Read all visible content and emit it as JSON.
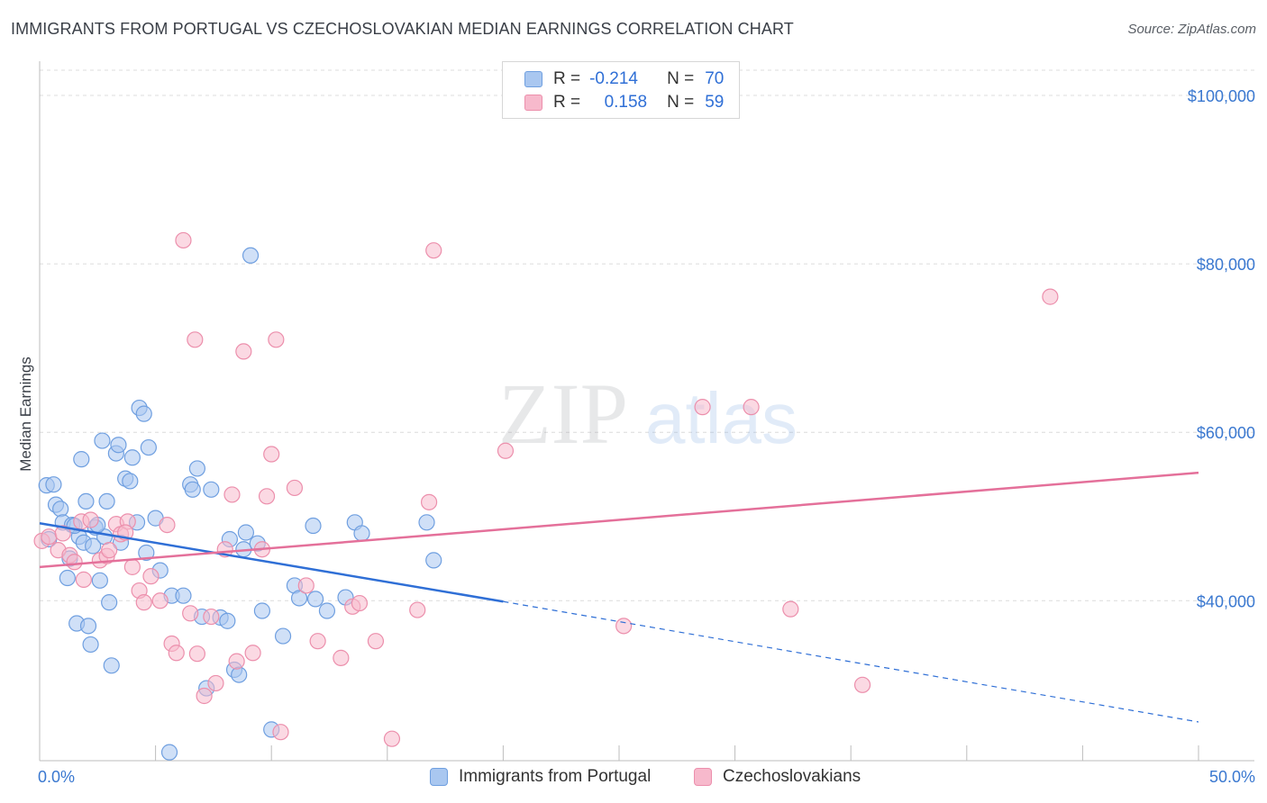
{
  "title": "IMMIGRANTS FROM PORTUGAL VS CZECHOSLOVAKIAN MEDIAN EARNINGS CORRELATION CHART",
  "source": "Source: ZipAtlas.com",
  "watermark": {
    "zip": "ZIP",
    "atlas": "atlas"
  },
  "legend": {
    "rows": [
      {
        "r_label": "R =",
        "r_value": "-0.214",
        "n_label": "N =",
        "n_value": "70",
        "color": "#a9c7f0",
        "stroke": "#6f9fe0"
      },
      {
        "r_label": "R =",
        "r_value": "0.158",
        "n_label": "N =",
        "n_value": "59",
        "color": "#f7b9cc",
        "stroke": "#ec8fac"
      }
    ]
  },
  "bottom_legend": [
    {
      "label": "Immigrants from Portugal",
      "color": "#a9c7f0",
      "stroke": "#6f9fe0"
    },
    {
      "label": "Czechoslovakians",
      "color": "#f7b9cc",
      "stroke": "#ec8fac"
    }
  ],
  "chart_data": {
    "type": "scatter",
    "title": "IMMIGRANTS FROM PORTUGAL VS CZECHOSLOVAKIAN MEDIAN EARNINGS CORRELATION CHART",
    "xlabel": "",
    "ylabel": "Median Earnings",
    "xlim": [
      0,
      50
    ],
    "ylim": [
      21000,
      103000
    ],
    "x_tick_labels": [
      "0.0%",
      "50.0%"
    ],
    "y_ticks": [
      40000,
      60000,
      80000,
      100000
    ],
    "y_tick_labels": [
      "$40,000",
      "$60,000",
      "$80,000",
      "$100,000"
    ],
    "grid": true,
    "legend_position": "top-center",
    "series": [
      {
        "name": "Immigrants from Portugal",
        "color": "#6f9fe0",
        "fill": "#a9c7f0",
        "trend": {
          "x": [
            0,
            20,
            50
          ],
          "y": [
            49200,
            39900,
            25600
          ],
          "solid_until": 20
        },
        "points": [
          [
            0.3,
            53700
          ],
          [
            0.6,
            53800
          ],
          [
            0.7,
            51400
          ],
          [
            0.9,
            50900
          ],
          [
            1.0,
            49300
          ],
          [
            1.2,
            42700
          ],
          [
            1.3,
            45000
          ],
          [
            1.4,
            49000
          ],
          [
            1.6,
            37300
          ],
          [
            1.7,
            47600
          ],
          [
            1.8,
            56800
          ],
          [
            1.9,
            46900
          ],
          [
            2.0,
            51800
          ],
          [
            2.1,
            37000
          ],
          [
            2.2,
            34800
          ],
          [
            2.3,
            46500
          ],
          [
            2.4,
            48700
          ],
          [
            2.6,
            42400
          ],
          [
            2.7,
            59000
          ],
          [
            2.8,
            47600
          ],
          [
            2.9,
            51800
          ],
          [
            3.0,
            39800
          ],
          [
            3.1,
            32300
          ],
          [
            3.3,
            57500
          ],
          [
            3.4,
            58500
          ],
          [
            3.5,
            46900
          ],
          [
            3.7,
            54500
          ],
          [
            3.9,
            54200
          ],
          [
            4.0,
            57000
          ],
          [
            4.2,
            49300
          ],
          [
            4.3,
            62900
          ],
          [
            4.5,
            62200
          ],
          [
            4.6,
            45700
          ],
          [
            4.7,
            58200
          ],
          [
            5.0,
            49800
          ],
          [
            5.2,
            43600
          ],
          [
            5.6,
            22000
          ],
          [
            5.7,
            40600
          ],
          [
            6.2,
            40600
          ],
          [
            6.5,
            53800
          ],
          [
            6.6,
            53200
          ],
          [
            6.8,
            55700
          ],
          [
            7.0,
            38100
          ],
          [
            7.2,
            29600
          ],
          [
            7.4,
            53200
          ],
          [
            7.8,
            38000
          ],
          [
            8.1,
            37600
          ],
          [
            8.2,
            47300
          ],
          [
            8.4,
            31800
          ],
          [
            8.6,
            31200
          ],
          [
            8.8,
            46100
          ],
          [
            8.9,
            48100
          ],
          [
            9.1,
            81000
          ],
          [
            9.4,
            46800
          ],
          [
            9.6,
            38800
          ],
          [
            10.0,
            24700
          ],
          [
            10.5,
            35800
          ],
          [
            11.0,
            41800
          ],
          [
            11.2,
            40300
          ],
          [
            11.8,
            48900
          ],
          [
            11.9,
            40200
          ],
          [
            12.4,
            38800
          ],
          [
            13.2,
            40400
          ],
          [
            13.6,
            49300
          ],
          [
            13.9,
            48000
          ],
          [
            16.7,
            49300
          ],
          [
            17.0,
            44800
          ],
          [
            0.4,
            47300
          ],
          [
            1.5,
            48900
          ],
          [
            2.5,
            49000
          ]
        ]
      },
      {
        "name": "Czechoslovakians",
        "color": "#ec8fac",
        "fill": "#f7b9cc",
        "trend": {
          "x": [
            0,
            50
          ],
          "y": [
            44000,
            55200
          ]
        },
        "points": [
          [
            0.1,
            47100
          ],
          [
            0.4,
            47600
          ],
          [
            0.8,
            46000
          ],
          [
            1.0,
            48000
          ],
          [
            1.3,
            45400
          ],
          [
            1.5,
            44600
          ],
          [
            1.8,
            49400
          ],
          [
            1.9,
            42500
          ],
          [
            2.2,
            49600
          ],
          [
            2.6,
            44800
          ],
          [
            2.9,
            45300
          ],
          [
            3.0,
            46000
          ],
          [
            3.3,
            49100
          ],
          [
            3.5,
            47900
          ],
          [
            3.8,
            49400
          ],
          [
            4.0,
            44000
          ],
          [
            4.3,
            41200
          ],
          [
            4.5,
            39800
          ],
          [
            4.8,
            42900
          ],
          [
            5.2,
            40000
          ],
          [
            5.5,
            49000
          ],
          [
            5.7,
            34900
          ],
          [
            5.9,
            33800
          ],
          [
            6.2,
            82800
          ],
          [
            6.5,
            38500
          ],
          [
            6.7,
            71000
          ],
          [
            6.8,
            33700
          ],
          [
            7.1,
            28700
          ],
          [
            7.4,
            38100
          ],
          [
            7.6,
            30200
          ],
          [
            8.0,
            46100
          ],
          [
            8.3,
            52600
          ],
          [
            8.5,
            32800
          ],
          [
            8.8,
            69600
          ],
          [
            9.2,
            33800
          ],
          [
            9.6,
            46100
          ],
          [
            9.8,
            52400
          ],
          [
            10.2,
            71000
          ],
          [
            10.4,
            24400
          ],
          [
            10.0,
            57400
          ],
          [
            11.0,
            53400
          ],
          [
            11.5,
            41800
          ],
          [
            12.0,
            35200
          ],
          [
            13.0,
            33200
          ],
          [
            13.5,
            39300
          ],
          [
            13.8,
            39700
          ],
          [
            14.5,
            35200
          ],
          [
            15.2,
            23600
          ],
          [
            16.3,
            38900
          ],
          [
            16.8,
            51700
          ],
          [
            17.0,
            81600
          ],
          [
            20.1,
            57800
          ],
          [
            25.2,
            37000
          ],
          [
            28.6,
            63000
          ],
          [
            30.7,
            63000
          ],
          [
            32.4,
            39000
          ],
          [
            35.5,
            30000
          ],
          [
            43.6,
            76100
          ],
          [
            3.7,
            48100
          ]
        ]
      }
    ]
  }
}
